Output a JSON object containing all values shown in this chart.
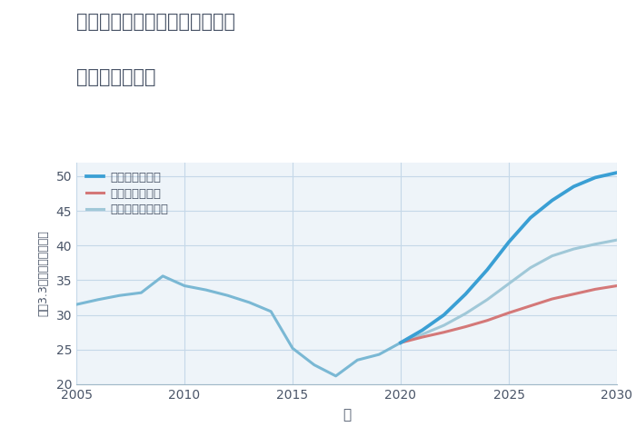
{
  "title_line1": "兵庫県朝来市和田山町法興寺の",
  "title_line2": "土地の価格推移",
  "xlabel": "年",
  "ylabel": "坪（3.3㎡）単価（万円）",
  "xlim": [
    2005,
    2030
  ],
  "ylim": [
    20,
    52
  ],
  "yticks": [
    20,
    25,
    30,
    35,
    40,
    45,
    50
  ],
  "xticks": [
    2005,
    2010,
    2015,
    2020,
    2025,
    2030
  ],
  "background_color": "#eef4f9",
  "grid_color": "#c5d8e8",
  "normal_x": [
    2005,
    2006,
    2007,
    2008,
    2009,
    2010,
    2011,
    2012,
    2013,
    2014,
    2015,
    2016,
    2017,
    2018,
    2019,
    2020
  ],
  "normal_y": [
    31.5,
    32.2,
    32.8,
    33.2,
    35.6,
    34.2,
    33.6,
    32.8,
    31.8,
    30.5,
    25.2,
    22.8,
    21.2,
    23.5,
    24.3,
    26.0
  ],
  "good_x": [
    2020,
    2021,
    2022,
    2023,
    2024,
    2025,
    2026,
    2027,
    2028,
    2029,
    2030
  ],
  "good_y": [
    26.0,
    27.8,
    30.0,
    33.0,
    36.5,
    40.5,
    44.0,
    46.5,
    48.5,
    49.8,
    50.5
  ],
  "bad_x": [
    2020,
    2021,
    2022,
    2023,
    2024,
    2025,
    2026,
    2027,
    2028,
    2029,
    2030
  ],
  "bad_y": [
    26.0,
    26.8,
    27.5,
    28.3,
    29.2,
    30.3,
    31.3,
    32.3,
    33.0,
    33.7,
    34.2
  ],
  "normal_future_x": [
    2020,
    2021,
    2022,
    2023,
    2024,
    2025,
    2026,
    2027,
    2028,
    2029,
    2030
  ],
  "normal_future_y": [
    26.0,
    27.2,
    28.5,
    30.2,
    32.2,
    34.5,
    36.8,
    38.5,
    39.5,
    40.2,
    40.8
  ],
  "color_normal": "#7ab8d4",
  "color_good": "#3a9fd4",
  "color_bad": "#d47878",
  "color_normal_future": "#a0c8d8",
  "legend_good": "グッドシナリオ",
  "legend_bad": "バッドシナリオ",
  "legend_normal": "ノーマルシナリオ",
  "title_color": "#4a5568",
  "axis_color": "#4a5568",
  "tick_color": "#4a5568",
  "linewidth": 2.2
}
